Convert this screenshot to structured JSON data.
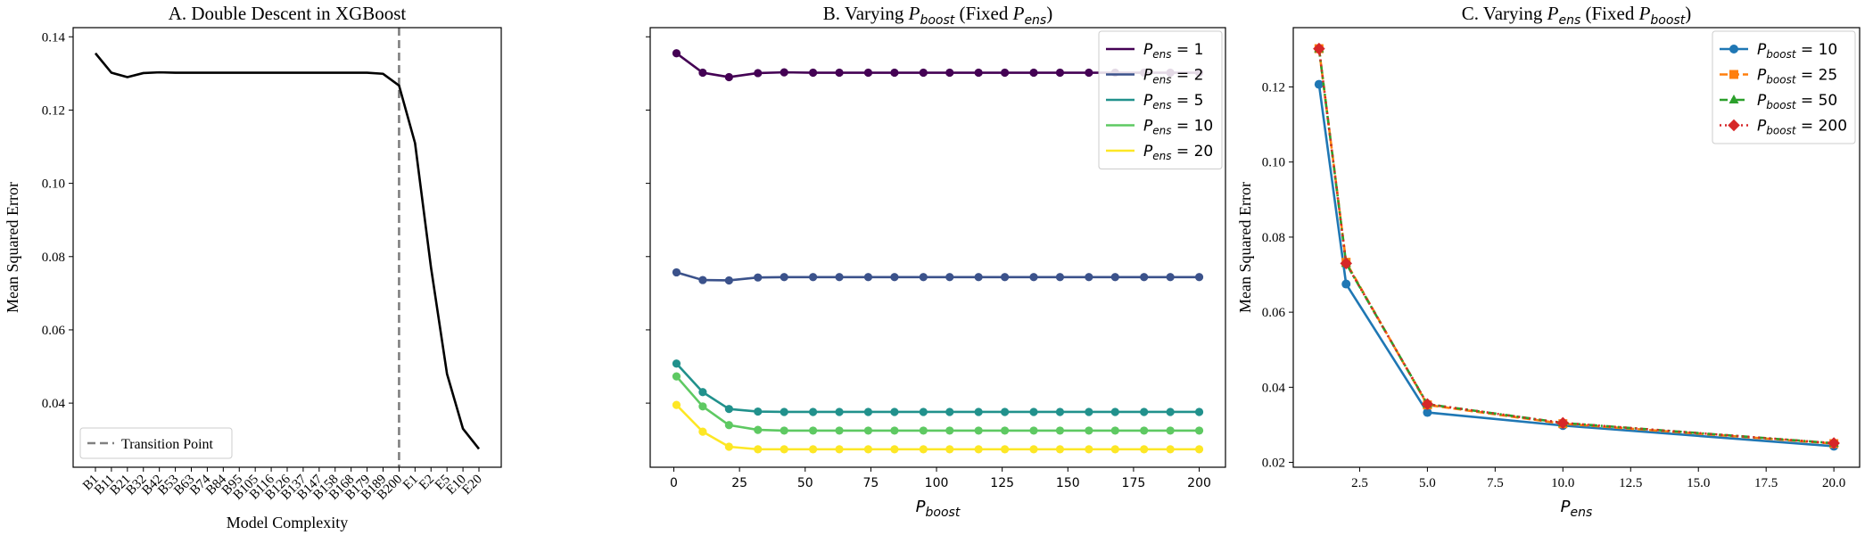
{
  "chart_data": [
    {
      "type": "line",
      "title": "A. Double Descent in XGBoost",
      "xlabel": "Model Complexity",
      "ylabel": "Mean Squared Error",
      "ylim": [
        0.0225,
        0.1425
      ],
      "yticks": [
        "0.04",
        "0.06",
        "0.08",
        "0.10",
        "0.12",
        "0.14"
      ],
      "ytick_values": [
        0.04,
        0.06,
        0.08,
        0.1,
        0.12,
        0.14
      ],
      "categories": [
        "B1",
        "B11",
        "B21",
        "B32",
        "B42",
        "B53",
        "B63",
        "B74",
        "B84",
        "B95",
        "B105",
        "B116",
        "B126",
        "B137",
        "B147",
        "B158",
        "B168",
        "B179",
        "B189",
        "B200",
        "E1",
        "E2",
        "E5",
        "E10",
        "E20"
      ],
      "values": [
        0.1355,
        0.1302,
        0.129,
        0.1301,
        0.1303,
        0.1302,
        0.1302,
        0.1302,
        0.1302,
        0.1302,
        0.1302,
        0.1302,
        0.1302,
        0.1302,
        0.1302,
        0.1302,
        0.1302,
        0.1302,
        0.1299,
        0.1267,
        0.111,
        0.077,
        0.048,
        0.033,
        0.0275
      ],
      "line_color": "#000000",
      "transition": {
        "category": "B200",
        "label": "Transition Point",
        "color": "#808080"
      },
      "legend_position": "lower-left"
    },
    {
      "type": "line",
      "title_prefix": "B. Varying ",
      "title_math": "P",
      "title_sub": "boost",
      "title_suffix": " (Fixed ",
      "title_math2": "P",
      "title_sub2": "ens",
      "title_end": ")",
      "xlabel_math": "P",
      "xlabel_sub": "boost",
      "xlim": [
        -9,
        210
      ],
      "xticks": [
        "0",
        "25",
        "50",
        "75",
        "100",
        "125",
        "150",
        "175",
        "200"
      ],
      "xtick_values": [
        0,
        25,
        50,
        75,
        100,
        125,
        150,
        175,
        200
      ],
      "ylim": [
        0.0225,
        0.1425
      ],
      "x": [
        1,
        11,
        21,
        32,
        42,
        53,
        63,
        74,
        84,
        95,
        105,
        116,
        126,
        137,
        147,
        158,
        168,
        179,
        189,
        200
      ],
      "legend_position": "top-right",
      "series": [
        {
          "name_math": "P",
          "name_sub": "ens",
          "name_val": " = 1",
          "color": "#440154",
          "values": [
            0.1355,
            0.1302,
            0.129,
            0.1301,
            0.1303,
            0.1302,
            0.1302,
            0.1302,
            0.1302,
            0.1302,
            0.1302,
            0.1302,
            0.1302,
            0.1302,
            0.1302,
            0.1302,
            0.1302,
            0.1302,
            0.1302,
            0.1302
          ]
        },
        {
          "name_math": "P",
          "name_sub": "ens",
          "name_val": " = 2",
          "color": "#3b528b",
          "values": [
            0.0757,
            0.0736,
            0.0735,
            0.0743,
            0.0744,
            0.0744,
            0.0744,
            0.0744,
            0.0744,
            0.0744,
            0.0744,
            0.0744,
            0.0744,
            0.0744,
            0.0744,
            0.0744,
            0.0744,
            0.0744,
            0.0744,
            0.0744
          ]
        },
        {
          "name_math": "P",
          "name_sub": "ens",
          "name_val": " = 5",
          "color": "#21918c",
          "values": [
            0.0508,
            0.043,
            0.0384,
            0.0377,
            0.0376,
            0.0376,
            0.0376,
            0.0376,
            0.0376,
            0.0376,
            0.0376,
            0.0376,
            0.0376,
            0.0376,
            0.0376,
            0.0376,
            0.0376,
            0.0376,
            0.0376,
            0.0376
          ]
        },
        {
          "name_math": "P",
          "name_sub": "ens",
          "name_val": " = 10",
          "color": "#5ec962",
          "values": [
            0.0473,
            0.0391,
            0.034,
            0.0327,
            0.0325,
            0.0325,
            0.0325,
            0.0325,
            0.0325,
            0.0325,
            0.0325,
            0.0325,
            0.0325,
            0.0325,
            0.0325,
            0.0325,
            0.0325,
            0.0325,
            0.0325,
            0.0325
          ]
        },
        {
          "name_math": "P",
          "name_sub": "ens",
          "name_val": " = 20",
          "color": "#fde725",
          "values": [
            0.0395,
            0.0322,
            0.0281,
            0.0274,
            0.0274,
            0.0274,
            0.0274,
            0.0274,
            0.0274,
            0.0274,
            0.0274,
            0.0274,
            0.0274,
            0.0274,
            0.0274,
            0.0274,
            0.0274,
            0.0274,
            0.0274,
            0.0274
          ]
        }
      ]
    },
    {
      "type": "line",
      "title_prefix": "C. Varying ",
      "title_math": "P",
      "title_sub": "ens",
      "title_suffix": " (Fixed ",
      "title_math2": "P",
      "title_sub2": "boost",
      "title_end": ")",
      "xlabel_math": "P",
      "xlabel_sub": "ens",
      "ylabel": "Mean Squared Error",
      "xlim": [
        0.05,
        20.95
      ],
      "xticks": [
        "2.5",
        "5.0",
        "7.5",
        "10.0",
        "12.5",
        "15.0",
        "17.5",
        "20.0"
      ],
      "xtick_values": [
        2.5,
        5.0,
        7.5,
        10.0,
        12.5,
        15.0,
        17.5,
        20.0
      ],
      "ylim": [
        0.0187,
        0.1358
      ],
      "yticks": [
        "0.02",
        "0.04",
        "0.06",
        "0.08",
        "0.10",
        "0.12"
      ],
      "ytick_values": [
        0.02,
        0.04,
        0.06,
        0.08,
        0.1,
        0.12
      ],
      "x": [
        1,
        2,
        5,
        10,
        20
      ],
      "legend_position": "top-right",
      "series": [
        {
          "name_math": "P",
          "name_sub": "boost",
          "name_val": " = 10",
          "color": "#1f77b4",
          "dash": "",
          "marker": "circle",
          "values": [
            0.1207,
            0.0675,
            0.0333,
            0.0298,
            0.0243
          ]
        },
        {
          "name_math": "P",
          "name_sub": "boost",
          "name_val": " = 25",
          "color": "#ff7f0e",
          "dash": "9 4",
          "marker": "square",
          "values": [
            0.1302,
            0.0733,
            0.0353,
            0.0303,
            0.025
          ]
        },
        {
          "name_math": "P",
          "name_sub": "boost",
          "name_val": " = 50",
          "color": "#2ca02c",
          "dash": "9 4 2 4",
          "marker": "triangle",
          "values": [
            0.1302,
            0.073,
            0.0355,
            0.0305,
            0.0251
          ]
        },
        {
          "name_math": "P",
          "name_sub": "boost",
          "name_val": " = 200",
          "color": "#d62728",
          "dash": "2 4",
          "marker": "diamond",
          "values": [
            0.1302,
            0.073,
            0.0355,
            0.0305,
            0.0251
          ]
        }
      ]
    }
  ]
}
